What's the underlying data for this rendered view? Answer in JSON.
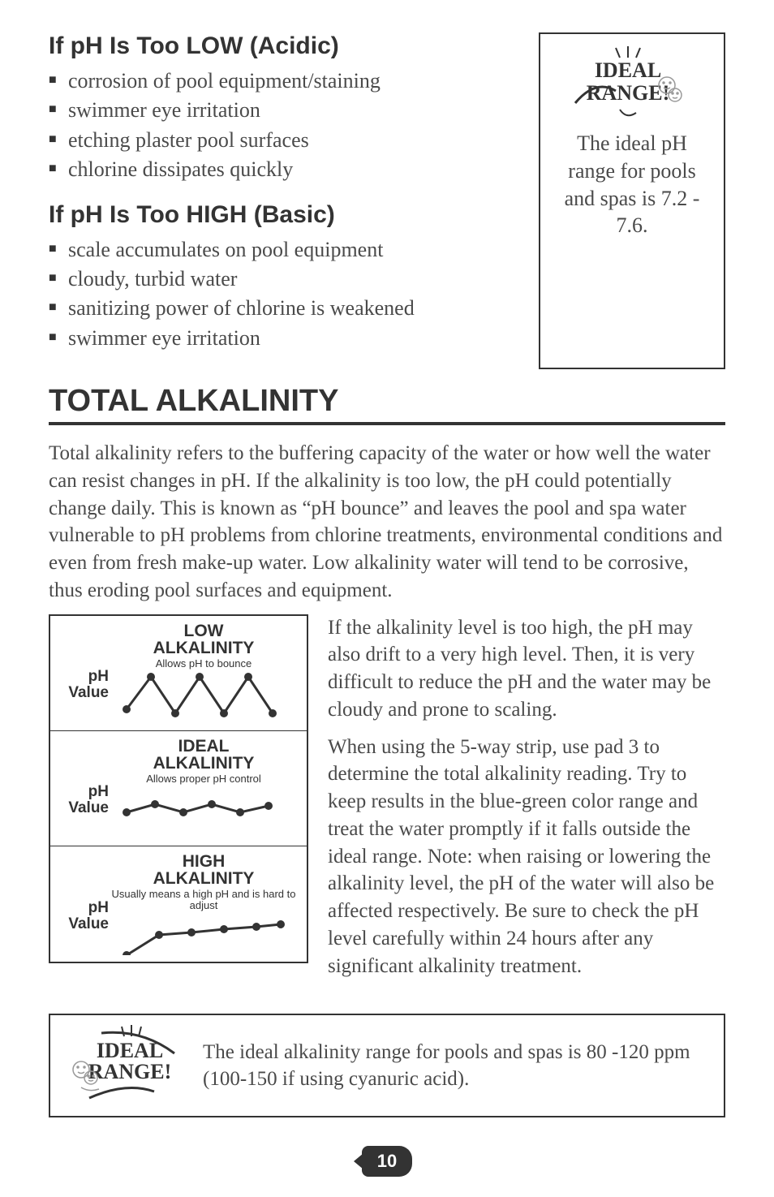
{
  "ph_low": {
    "heading": "If pH Is Too LOW (Acidic)",
    "items": [
      "corrosion of pool equipment/staining",
      "swimmer eye irritation",
      "etching plaster pool surfaces",
      "chlorine dissipates quickly"
    ]
  },
  "ph_high": {
    "heading": "If pH Is Too HIGH (Basic)",
    "items": [
      "scale accumulates on pool equipment",
      "cloudy, turbid water",
      "sanitizing power of chlorine is weakened",
      "swimmer eye irritation"
    ]
  },
  "ph_callout": {
    "badge_line1": "IDEAL",
    "badge_line2": "RANGE!",
    "text": "The ideal pH range for pools and spas is 7.2 - 7.6."
  },
  "section_title": "TOTAL ALKALINITY",
  "para1": "Total alkalinity refers to the buffering capacity of the water or how well the water can resist changes in pH. If the alkalinity is too low, the pH could potentially change daily. This is known as “pH bounce” and leaves the pool and spa water vulnerable to pH problems from chlorine treatments, environmental conditions and even from fresh make-up water. Low alkalinity water will tend to be corrosive, thus eroding pool surfaces and equipment.",
  "para2": "If the alkalinity level is too high, the pH may also drift to a very high level. Then, it is very difficult to reduce the pH and the water may be cloudy and prone to scaling.",
  "para3": "When using the 5-way strip, use pad 3 to determine the total alkalinity reading. Try to keep results in the blue-green color range and treat the water promptly if it falls outside the ideal range. Note: when raising or lowering the alkalinity level, the pH of the water will also be affected respectively. Be sure to check the pH level carefully within 24 hours after any significant alkalinity treatment.",
  "chart": {
    "ylabel": "pH Value",
    "panels": [
      {
        "title1": "LOW",
        "title2": "ALKALINITY",
        "sub": "Allows pH to bounce",
        "type": "bounce",
        "points": [
          [
            10,
            45
          ],
          [
            40,
            5
          ],
          [
            70,
            50
          ],
          [
            100,
            5
          ],
          [
            130,
            50
          ],
          [
            160,
            5
          ],
          [
            190,
            50
          ]
        ],
        "line_width": 3,
        "marker_r": 5,
        "color": "#333333"
      },
      {
        "title1": "IDEAL",
        "title2": "ALKALINITY",
        "sub": "Allows proper pH control",
        "type": "gentle",
        "points": [
          [
            10,
            30
          ],
          [
            45,
            20
          ],
          [
            80,
            30
          ],
          [
            115,
            20
          ],
          [
            150,
            30
          ],
          [
            185,
            22
          ]
        ],
        "line_width": 3,
        "marker_r": 5,
        "color": "#333333"
      },
      {
        "title1": "HIGH",
        "title2": "ALKALINITY",
        "sub": "Usually means a high pH and is hard to adjust",
        "type": "rising",
        "points": [
          [
            10,
            50
          ],
          [
            50,
            25
          ],
          [
            90,
            22
          ],
          [
            130,
            18
          ],
          [
            170,
            15
          ],
          [
            200,
            12
          ]
        ],
        "line_width": 3,
        "marker_r": 5,
        "color": "#333333"
      }
    ]
  },
  "alk_callout": {
    "badge_line1": "IDEAL",
    "badge_line2": "RANGE!",
    "text": "The ideal alkalinity range for pools and spas is 80 -120 ppm (100-150 if using cyanuric acid)."
  },
  "page_number": "10"
}
